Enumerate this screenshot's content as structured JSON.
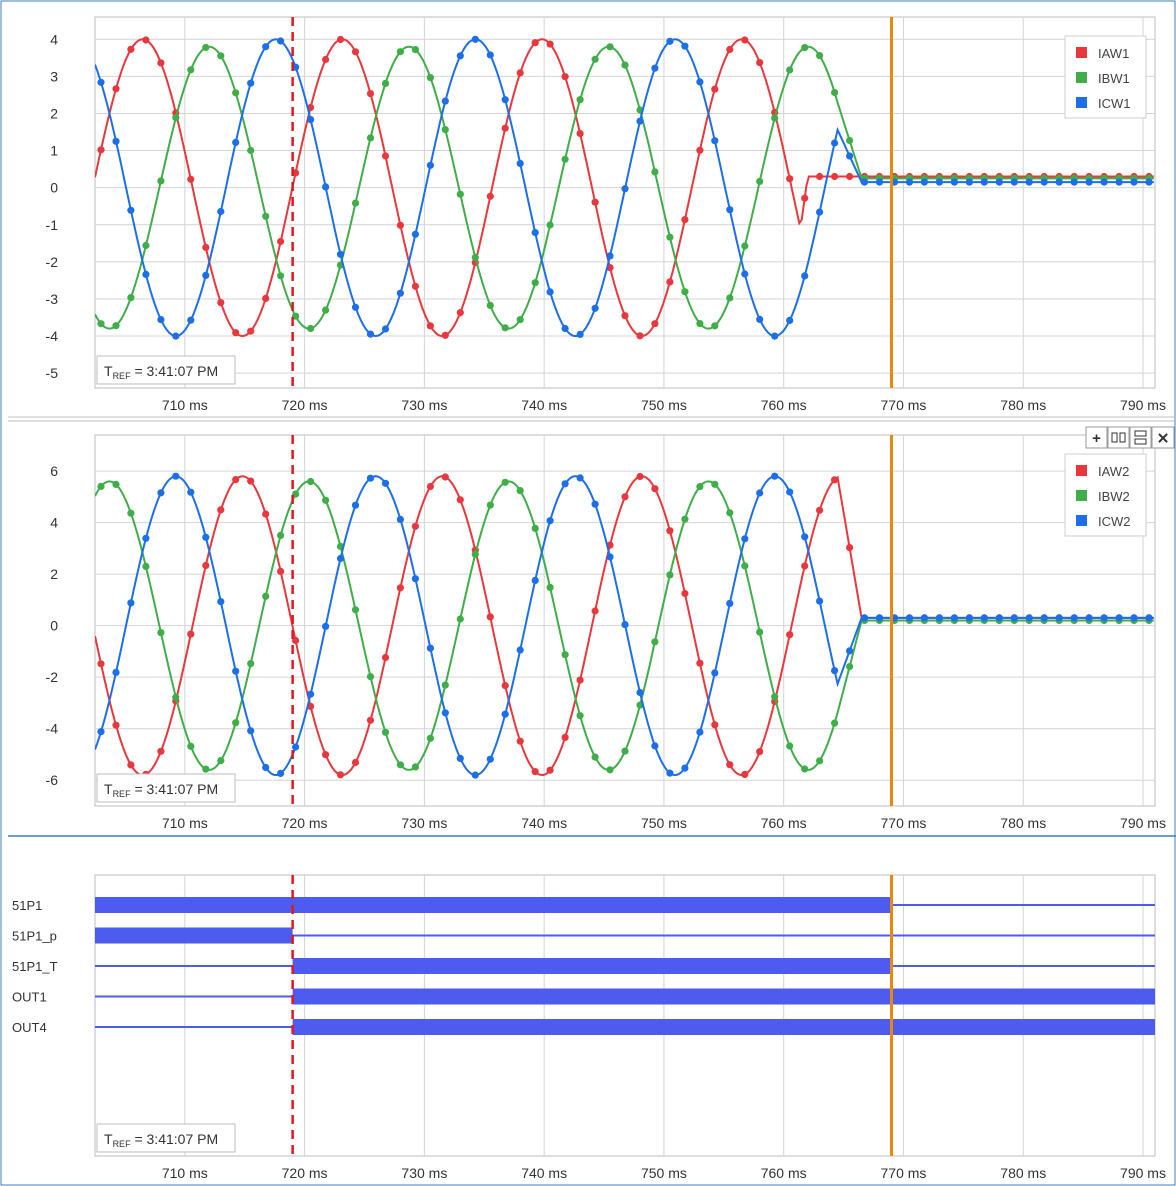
{
  "colors": {
    "IAW": "#e8383d",
    "IBW": "#3fae49",
    "ICW": "#1c6fe8",
    "cursor_dashed": "#e0181e",
    "cursor_solid": "#e8890c",
    "digital": "#4d5bef",
    "grid": "#d4d4d4"
  },
  "x_tick_labels": [
    "710 ms",
    "720 ms",
    "730 ms",
    "740 ms",
    "750 ms",
    "760 ms",
    "770 ms",
    "780 ms",
    "790 ms"
  ],
  "tref": {
    "sub": "REF",
    "text": " = 3:41:07 PM"
  },
  "toolbar": {
    "add": "+",
    "columns": "▯▯",
    "rows": "☰",
    "close": "✕"
  },
  "chart_data": [
    {
      "type": "line",
      "x_unit": "ms",
      "xlim": [
        702.5,
        791
      ],
      "ylim": [
        -5.4,
        4.6
      ],
      "y_ticks": [
        4,
        3,
        2,
        1,
        0,
        -1,
        -2,
        -3,
        -4,
        -5
      ],
      "y_tick_labels": [
        "4",
        "3",
        "2",
        "1",
        "0",
        "-1",
        "-2",
        "-3",
        "-4",
        "-5"
      ],
      "legend": "top-right",
      "cursors": {
        "dashed": 719,
        "solid": 769
      },
      "series": [
        {
          "name": "IAW1",
          "color_key": "IAW",
          "amplitude": 4.0,
          "phase_deg": -50,
          "fault_end": 762,
          "final": 0.3
        },
        {
          "name": "IBW1",
          "color_key": "IBW",
          "amplitude": 3.8,
          "phase_deg": 190,
          "fault_end": 766.5,
          "final": 0.25
        },
        {
          "name": "ICW1",
          "color_key": "ICW",
          "amplitude": 4.0,
          "phase_deg": 70,
          "fault_end": 766.5,
          "final": 0.15
        }
      ],
      "period_ms": 16.67,
      "sample_ms": 1.25
    },
    {
      "type": "line",
      "x_unit": "ms",
      "xlim": [
        702.5,
        791
      ],
      "ylim": [
        -7.0,
        7.4
      ],
      "y_ticks": [
        6,
        4,
        2,
        0,
        -2,
        -4,
        -6
      ],
      "y_tick_labels": [
        "6",
        "4",
        "2",
        "0",
        "-2",
        "-4",
        "-6"
      ],
      "legend": "top-right",
      "cursors": {
        "dashed": 719,
        "solid": 769
      },
      "series": [
        {
          "name": "IAW2",
          "color_key": "IAW",
          "amplitude": 5.8,
          "phase_deg": 130,
          "fault_end": 766.5,
          "final": 0.3
        },
        {
          "name": "IBW2",
          "color_key": "IBW",
          "amplitude": 5.6,
          "phase_deg": 10,
          "fault_end": 766.5,
          "final": 0.2
        },
        {
          "name": "ICW2",
          "color_key": "ICW",
          "amplitude": 5.8,
          "phase_deg": 250,
          "fault_end": 766.5,
          "final": 0.3
        }
      ],
      "period_ms": 16.67,
      "sample_ms": 1.25
    },
    {
      "type": "digital",
      "x_unit": "ms",
      "xlim": [
        702.5,
        791
      ],
      "cursors": {
        "dashed": 719,
        "solid": 769
      },
      "channels": [
        {
          "name": "51P1",
          "asserted": [
            [
              702.5,
              769
            ]
          ]
        },
        {
          "name": "51P1_p",
          "asserted": [
            [
              702.5,
              719
            ]
          ]
        },
        {
          "name": "51P1_T",
          "asserted": [
            [
              719,
              769
            ]
          ]
        },
        {
          "name": "OUT1",
          "asserted": [
            [
              719,
              791
            ]
          ]
        },
        {
          "name": "OUT4",
          "asserted": [
            [
              719,
              791
            ]
          ]
        }
      ]
    }
  ]
}
